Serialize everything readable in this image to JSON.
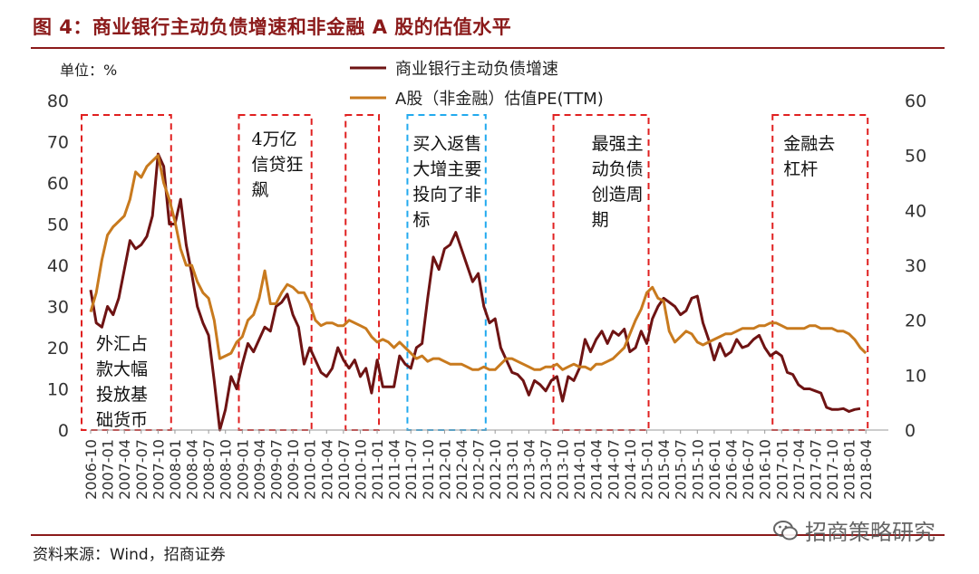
{
  "title": "图 4：商业银行主动负债增速和非金融 A 股的估值水平",
  "source": "资料来源：Wind，招商证券",
  "watermark": "招商策略研究",
  "colors": {
    "accent": "#8b1a1a",
    "series1": "#6e1313",
    "series2": "#c87a1e",
    "box_red": "#e02020",
    "box_blue": "#22aaee"
  },
  "chart_data": {
    "type": "line",
    "unit_label": "单位：%",
    "left_axis": {
      "min": 0,
      "max": 80,
      "ticks": [
        0,
        10,
        20,
        30,
        40,
        50,
        60,
        70,
        80
      ]
    },
    "right_axis": {
      "min": 0,
      "max": 60,
      "ticks": [
        0,
        10,
        20,
        30,
        40,
        50,
        60
      ]
    },
    "x_tick_labels": [
      "2006-10",
      "2007-01",
      "2007-04",
      "2007-07",
      "2007-10",
      "2008-01",
      "2008-04",
      "2008-07",
      "2008-10",
      "2009-01",
      "2009-04",
      "2009-07",
      "2009-10",
      "2010-01",
      "2010-04",
      "2010-07",
      "2010-10",
      "2011-01",
      "2011-04",
      "2011-07",
      "2011-10",
      "2012-01",
      "2012-04",
      "2012-07",
      "2012-10",
      "2013-01",
      "2013-04",
      "2013-07",
      "2013-10",
      "2014-01",
      "2014-04",
      "2014-07",
      "2014-10",
      "2015-01",
      "2015-04",
      "2015-07",
      "2015-10",
      "2016-01",
      "2016-04",
      "2016-07",
      "2016-10",
      "2017-01",
      "2017-04",
      "2017-07",
      "2017-10",
      "2018-01",
      "2018-04"
    ],
    "months": 142,
    "series": [
      {
        "name": "商业银行主动负债增速",
        "axis": "left",
        "points": [
          [
            0,
            34
          ],
          [
            1,
            26
          ],
          [
            2,
            25
          ],
          [
            3,
            30
          ],
          [
            4,
            28
          ],
          [
            5,
            32
          ],
          [
            6,
            39
          ],
          [
            7,
            46
          ],
          [
            8,
            44
          ],
          [
            9,
            45
          ],
          [
            10,
            47
          ],
          [
            11,
            52
          ],
          [
            12,
            67
          ],
          [
            13,
            64
          ],
          [
            14,
            50
          ],
          [
            15,
            50
          ],
          [
            16,
            56
          ],
          [
            17,
            45
          ],
          [
            18,
            38
          ],
          [
            19,
            30
          ],
          [
            20,
            26
          ],
          [
            21,
            23
          ],
          [
            22,
            12
          ],
          [
            23,
            0
          ],
          [
            24,
            5
          ],
          [
            25,
            13
          ],
          [
            26,
            10
          ],
          [
            27,
            16
          ],
          [
            28,
            21
          ],
          [
            29,
            19
          ],
          [
            30,
            22
          ],
          [
            31,
            25
          ],
          [
            32,
            24
          ],
          [
            33,
            30
          ],
          [
            34,
            31
          ],
          [
            35,
            33
          ],
          [
            36,
            28
          ],
          [
            37,
            25
          ],
          [
            38,
            16
          ],
          [
            39,
            20
          ],
          [
            40,
            17
          ],
          [
            41,
            14
          ],
          [
            42,
            13
          ],
          [
            43,
            15
          ],
          [
            44,
            20
          ],
          [
            45,
            17
          ],
          [
            46,
            15
          ],
          [
            47,
            17
          ],
          [
            48,
            13
          ],
          [
            49,
            15
          ],
          [
            50,
            9
          ],
          [
            51,
            17
          ],
          [
            52,
            10.5
          ],
          [
            53,
            10.5
          ],
          [
            54,
            10.5
          ],
          [
            55,
            18
          ],
          [
            56,
            16
          ],
          [
            57,
            15
          ],
          [
            58,
            20
          ],
          [
            59,
            21
          ],
          [
            60,
            32
          ],
          [
            61,
            42
          ],
          [
            62,
            39
          ],
          [
            63,
            44
          ],
          [
            64,
            45
          ],
          [
            65,
            48
          ],
          [
            66,
            44
          ],
          [
            67,
            40
          ],
          [
            68,
            36
          ],
          [
            69,
            38
          ],
          [
            70,
            30
          ],
          [
            71,
            26
          ],
          [
            72,
            27
          ],
          [
            73,
            20
          ],
          [
            74,
            17
          ],
          [
            75,
            14
          ],
          [
            76,
            13.5
          ],
          [
            77,
            12
          ],
          [
            78,
            8.5
          ],
          [
            79,
            12
          ],
          [
            80,
            11
          ],
          [
            81,
            9.5
          ],
          [
            82,
            12
          ],
          [
            83,
            13
          ],
          [
            84,
            7
          ],
          [
            85,
            13
          ],
          [
            86,
            12
          ],
          [
            87,
            15
          ],
          [
            88,
            22
          ],
          [
            89,
            19
          ],
          [
            90,
            22
          ],
          [
            91,
            24
          ],
          [
            92,
            21
          ],
          [
            93,
            24
          ],
          [
            94,
            23
          ],
          [
            95,
            24.5
          ],
          [
            96,
            19
          ],
          [
            97,
            20
          ],
          [
            98,
            24
          ],
          [
            99,
            21
          ],
          [
            100,
            27
          ],
          [
            101,
            30
          ],
          [
            102,
            32
          ],
          [
            103,
            31
          ],
          [
            104,
            30
          ],
          [
            105,
            28
          ],
          [
            106,
            29
          ],
          [
            107,
            32
          ],
          [
            108,
            32.5
          ],
          [
            109,
            26
          ],
          [
            110,
            22
          ],
          [
            111,
            17
          ],
          [
            112,
            21
          ],
          [
            113,
            18
          ],
          [
            114,
            19
          ],
          [
            115,
            22
          ],
          [
            116,
            20
          ],
          [
            117,
            20.5
          ],
          [
            118,
            22
          ],
          [
            119,
            23
          ],
          [
            120,
            20
          ],
          [
            121,
            18
          ],
          [
            122,
            19
          ],
          [
            123,
            18
          ],
          [
            124,
            14
          ],
          [
            125,
            13.5
          ],
          [
            126,
            11
          ],
          [
            127,
            10
          ],
          [
            128,
            10
          ],
          [
            129,
            9.5
          ],
          [
            130,
            9
          ],
          [
            131,
            5.5
          ],
          [
            132,
            5
          ],
          [
            133,
            5
          ],
          [
            134,
            5.2
          ],
          [
            135,
            4.5
          ],
          [
            136,
            5
          ],
          [
            137,
            5.2
          ]
        ]
      },
      {
        "name": "A股（非金融）估值PE(TTM)",
        "axis": "right",
        "points": [
          [
            0,
            21.5
          ],
          [
            1,
            25
          ],
          [
            2,
            31
          ],
          [
            3,
            35.5
          ],
          [
            4,
            37
          ],
          [
            5,
            38
          ],
          [
            6,
            39
          ],
          [
            7,
            42
          ],
          [
            8,
            47
          ],
          [
            9,
            46
          ],
          [
            10,
            48
          ],
          [
            11,
            49
          ],
          [
            12,
            50
          ],
          [
            13,
            45
          ],
          [
            14,
            42
          ],
          [
            15,
            38
          ],
          [
            16,
            33
          ],
          [
            17,
            30
          ],
          [
            18,
            30
          ],
          [
            19,
            27
          ],
          [
            20,
            25
          ],
          [
            21,
            24
          ],
          [
            22,
            20
          ],
          [
            23,
            13
          ],
          [
            24,
            13.5
          ],
          [
            25,
            14
          ],
          [
            26,
            16
          ],
          [
            27,
            17
          ],
          [
            28,
            20
          ],
          [
            29,
            21
          ],
          [
            30,
            24
          ],
          [
            31,
            29
          ],
          [
            32,
            23
          ],
          [
            33,
            23
          ],
          [
            34,
            25
          ],
          [
            35,
            26.5
          ],
          [
            36,
            26
          ],
          [
            37,
            25
          ],
          [
            38,
            25
          ],
          [
            39,
            23
          ],
          [
            40,
            20
          ],
          [
            41,
            19
          ],
          [
            42,
            19.5
          ],
          [
            43,
            19.5
          ],
          [
            44,
            19
          ],
          [
            45,
            19
          ],
          [
            46,
            20
          ],
          [
            47,
            19.5
          ],
          [
            48,
            19
          ],
          [
            49,
            18.5
          ],
          [
            50,
            17
          ],
          [
            51,
            16
          ],
          [
            52,
            16.5
          ],
          [
            53,
            16
          ],
          [
            54,
            15
          ],
          [
            55,
            16
          ],
          [
            56,
            15
          ],
          [
            57,
            14
          ],
          [
            58,
            13
          ],
          [
            59,
            13.5
          ],
          [
            60,
            12.5
          ],
          [
            61,
            13
          ],
          [
            62,
            13
          ],
          [
            63,
            12.5
          ],
          [
            64,
            12
          ],
          [
            65,
            12
          ],
          [
            66,
            12
          ],
          [
            67,
            11.5
          ],
          [
            68,
            11
          ],
          [
            69,
            11
          ],
          [
            70,
            11.5
          ],
          [
            71,
            11
          ],
          [
            72,
            11
          ],
          [
            73,
            12
          ],
          [
            74,
            13
          ],
          [
            75,
            13
          ],
          [
            76,
            12.5
          ],
          [
            77,
            12
          ],
          [
            78,
            11.5
          ],
          [
            79,
            11
          ],
          [
            80,
            11
          ],
          [
            81,
            11.5
          ],
          [
            82,
            11.5
          ],
          [
            83,
            12
          ],
          [
            84,
            11
          ],
          [
            85,
            11.5
          ],
          [
            86,
            12
          ],
          [
            87,
            11.5
          ],
          [
            88,
            11.5
          ],
          [
            89,
            11
          ],
          [
            90,
            12
          ],
          [
            91,
            12
          ],
          [
            92,
            12.5
          ],
          [
            93,
            13
          ],
          [
            94,
            14
          ],
          [
            95,
            15
          ],
          [
            96,
            17.5
          ],
          [
            97,
            20
          ],
          [
            98,
            22
          ],
          [
            99,
            25
          ],
          [
            100,
            26
          ],
          [
            101,
            24
          ],
          [
            102,
            23.5
          ],
          [
            103,
            18
          ],
          [
            104,
            16
          ],
          [
            105,
            17
          ],
          [
            106,
            18
          ],
          [
            107,
            17.5
          ],
          [
            108,
            16
          ],
          [
            109,
            15.5
          ],
          [
            110,
            16
          ],
          [
            111,
            16.5
          ],
          [
            112,
            17
          ],
          [
            113,
            17.5
          ],
          [
            114,
            17.5
          ],
          [
            115,
            18
          ],
          [
            116,
            18.5
          ],
          [
            117,
            18.5
          ],
          [
            118,
            18.5
          ],
          [
            119,
            19
          ],
          [
            120,
            19
          ],
          [
            121,
            19.5
          ],
          [
            122,
            19.5
          ],
          [
            123,
            19
          ],
          [
            124,
            18.5
          ],
          [
            125,
            18.5
          ],
          [
            126,
            18.5
          ],
          [
            127,
            18.5
          ],
          [
            128,
            19
          ],
          [
            129,
            19
          ],
          [
            130,
            18.5
          ],
          [
            131,
            18.5
          ],
          [
            132,
            18.5
          ],
          [
            133,
            18
          ],
          [
            134,
            18
          ],
          [
            135,
            17.5
          ],
          [
            136,
            16.5
          ],
          [
            137,
            15
          ],
          [
            138,
            14
          ]
        ]
      }
    ],
    "annotations": [
      {
        "text": [
          "外汇占",
          "款大幅",
          "投放基",
          "础货币"
        ],
        "box": [
          0,
          14
        ],
        "color": "red"
      },
      {
        "text": [
          "4万亿",
          "信贷狂",
          "飙"
        ],
        "box": [
          28,
          39
        ],
        "color": "red"
      },
      {
        "text": [],
        "box": [
          47,
          51
        ],
        "color": "red"
      },
      {
        "text": [
          "买入返售",
          "大增主要",
          "投向了非",
          "标"
        ],
        "box": [
          58,
          70
        ],
        "color": "blue"
      },
      {
        "text": [
          "最强主",
          "动负债",
          "创造周",
          "期"
        ],
        "box": [
          84,
          99
        ],
        "color": "red"
      },
      {
        "text": [
          "金融去",
          "杠杆"
        ],
        "box": [
          123,
          138
        ],
        "color": "red"
      }
    ]
  }
}
